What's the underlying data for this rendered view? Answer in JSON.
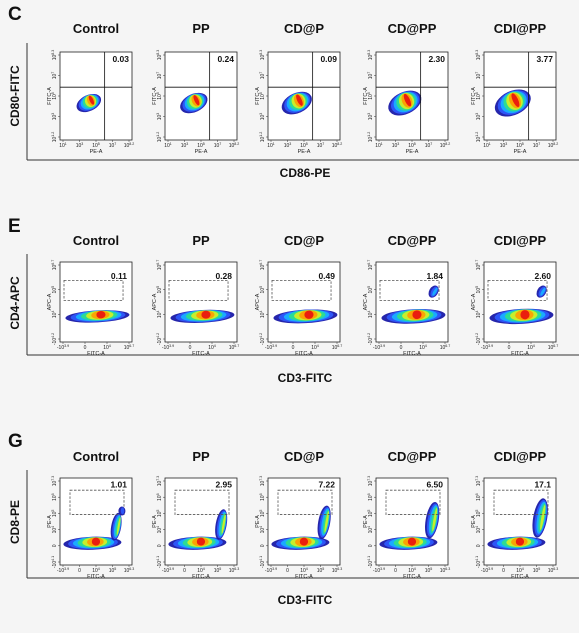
{
  "chart_data": [
    {
      "type": "scatter",
      "panel": "C",
      "xlabel": "CD86-PE",
      "ylabel": "CD80-FITC",
      "plot_xlabel": "PE-A",
      "plot_ylabel": "FITC-A",
      "x_ticks": [
        "10^1",
        "10^3",
        "10^5",
        "10^7",
        "10^8.2"
      ],
      "y_ticks": [
        "10^8.3",
        "10^7",
        "10^5",
        "10^3",
        "10^1.2"
      ],
      "gate": "quadrant",
      "categories": [
        "Control",
        "PP",
        "CD@P",
        "CD@PP",
        "CDI@PP"
      ],
      "values": [
        0.03,
        0.24,
        0.09,
        2.3,
        3.77
      ],
      "value_labels": [
        "0.03",
        "0.24",
        "0.09",
        "2.30",
        "3.77"
      ]
    },
    {
      "type": "scatter",
      "panel": "E",
      "xlabel": "CD3-FITC",
      "ylabel": "CD4-APC",
      "plot_xlabel": "FITC-A",
      "plot_ylabel": "APC-A",
      "x_ticks": [
        "-10^3.9",
        "0",
        "10^4",
        "10^6.7"
      ],
      "y_ticks": [
        "10^6.7",
        "10^5",
        "10^4",
        "-10^4.2"
      ],
      "gate": "box",
      "categories": [
        "Control",
        "PP",
        "CD@P",
        "CD@PP",
        "CDI@PP"
      ],
      "values": [
        0.11,
        0.28,
        0.49,
        1.84,
        2.6
      ],
      "value_labels": [
        "0.11",
        "0.28",
        "0.49",
        "1.84",
        "2.60"
      ]
    },
    {
      "type": "scatter",
      "panel": "G",
      "xlabel": "CD3-FITC",
      "ylabel": "CD8-PE",
      "plot_xlabel": "FITC-A",
      "plot_ylabel": "PE-A",
      "x_ticks": [
        "-10^3.9",
        "0",
        "10^4",
        "10^5",
        "10^6.3"
      ],
      "y_ticks": [
        "10^7.3",
        "10^6",
        "10^5",
        "10^4",
        "0",
        "-10^4.1"
      ],
      "gate": "box",
      "categories": [
        "Control",
        "PP",
        "CD@P",
        "CD@PP",
        "CDI@PP"
      ],
      "values": [
        1.01,
        2.95,
        7.22,
        6.5,
        17.1
      ],
      "value_labels": [
        "1.01",
        "2.95",
        "7.22",
        "6.50",
        "17.1"
      ]
    }
  ],
  "colors": {
    "density": [
      "#1a1aa8",
      "#2f5bff",
      "#18b4ff",
      "#2fe08a",
      "#d8f020",
      "#ff9a00",
      "#e81010"
    ],
    "frame": "#222222",
    "gate": "#555555",
    "background": "#f5f5f5"
  }
}
